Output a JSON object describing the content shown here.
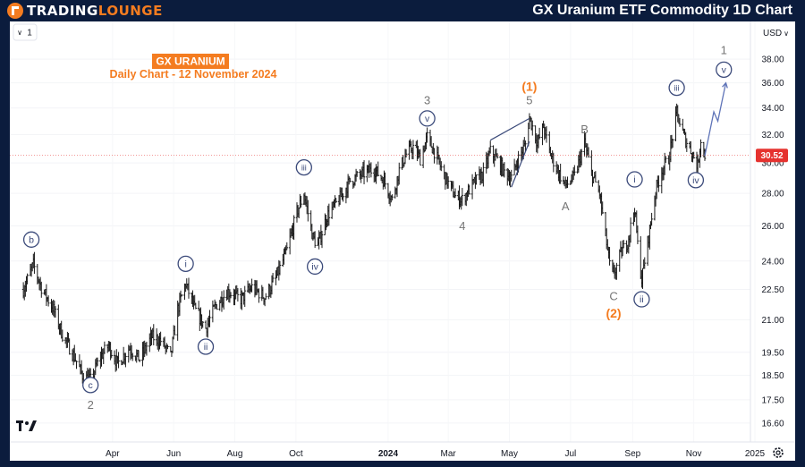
{
  "header": {
    "logo_word1": "TRADING",
    "logo_word2": "LOUNGE",
    "title": "GX Uranium ETF Commodity 1D Chart"
  },
  "chart_header": {
    "interval_button": "1",
    "currency": "USD",
    "badge_text": "GX URANIUM",
    "subtitle": "Daily Chart - 12 November 2024",
    "price_tag": "30.52",
    "tv_logo_icon": "tradingview-logo-icon",
    "settings_icon": "gear-icon"
  },
  "colors": {
    "accent": "#f47c20",
    "wave": "#3b4a7a",
    "grey_label": "#757575",
    "price_tag": "#e5322f",
    "candle": "#1a1a1a"
  },
  "chart_data": {
    "type": "ohlc",
    "y_scale": "log",
    "ylim": [
      15.9,
      41.4
    ],
    "y_ticks": [
      "38.00",
      "36.00",
      "34.00",
      "32.00",
      "30.00",
      "28.00",
      "26.00",
      "24.00",
      "22.50",
      "21.00",
      "19.50",
      "18.50",
      "17.50",
      "16.60"
    ],
    "x_ticks": [
      "Apr",
      "Jun",
      "Aug",
      "Oct",
      "2024",
      "Mar",
      "May",
      "Jul",
      "Sep",
      "Nov",
      "2025"
    ],
    "last_price": 30.52,
    "price_path": [
      [
        "2023-01-02",
        22.5
      ],
      [
        "2023-01-12",
        23.8
      ],
      [
        "2023-01-20",
        22.6
      ],
      [
        "2023-02-01",
        21.5
      ],
      [
        "2023-02-10",
        20.3
      ],
      [
        "2023-02-22",
        19.3
      ],
      [
        "2023-03-02",
        18.5
      ],
      [
        "2023-03-10",
        18.3
      ],
      [
        "2023-03-20",
        19.3
      ],
      [
        "2023-03-28",
        19.8
      ],
      [
        "2023-04-06",
        19.0
      ],
      [
        "2023-04-18",
        19.7
      ],
      [
        "2023-04-28",
        19.2
      ],
      [
        "2023-05-10",
        20.2
      ],
      [
        "2023-05-20",
        20.0
      ],
      [
        "2023-05-29",
        19.3
      ],
      [
        "2023-06-05",
        21.5
      ],
      [
        "2023-06-13",
        22.8
      ],
      [
        "2023-06-22",
        21.5
      ],
      [
        "2023-07-03",
        20.6
      ],
      [
        "2023-07-13",
        21.7
      ],
      [
        "2023-07-25",
        22.4
      ],
      [
        "2023-08-07",
        22.0
      ],
      [
        "2023-08-18",
        22.6
      ],
      [
        "2023-08-31",
        22.1
      ],
      [
        "2023-09-12",
        23.2
      ],
      [
        "2023-09-22",
        24.6
      ],
      [
        "2023-10-02",
        26.8
      ],
      [
        "2023-10-09",
        28.0
      ],
      [
        "2023-10-18",
        25.3
      ],
      [
        "2023-10-23",
        24.9
      ],
      [
        "2023-11-01",
        26.6
      ],
      [
        "2023-11-13",
        27.6
      ],
      [
        "2023-11-24",
        28.8
      ],
      [
        "2023-12-05",
        29.2
      ],
      [
        "2023-12-18",
        29.6
      ],
      [
        "2023-12-28",
        28.8
      ],
      [
        "2024-01-05",
        27.6
      ],
      [
        "2024-01-12",
        29.5
      ],
      [
        "2024-01-19",
        30.6
      ],
      [
        "2024-01-26",
        31.1
      ],
      [
        "2024-02-02",
        30.3
      ],
      [
        "2024-02-09",
        31.8
      ],
      [
        "2024-02-16",
        30.8
      ],
      [
        "2024-02-27",
        29.0
      ],
      [
        "2024-03-08",
        27.8
      ],
      [
        "2024-03-15",
        27.6
      ],
      [
        "2024-03-26",
        28.6
      ],
      [
        "2024-04-05",
        29.3
      ],
      [
        "2024-04-12",
        30.8
      ],
      [
        "2024-04-18",
        30.3
      ],
      [
        "2024-04-26",
        29.4
      ],
      [
        "2024-05-03",
        29.0
      ],
      [
        "2024-05-10",
        30.3
      ],
      [
        "2024-05-17",
        31.3
      ],
      [
        "2024-05-21",
        33.3
      ],
      [
        "2024-05-29",
        31.4
      ],
      [
        "2024-06-04",
        32.6
      ],
      [
        "2024-06-10",
        30.8
      ],
      [
        "2024-06-18",
        29.5
      ],
      [
        "2024-06-26",
        28.5
      ],
      [
        "2024-07-05",
        29.1
      ],
      [
        "2024-07-15",
        31.4
      ],
      [
        "2024-07-22",
        29.3
      ],
      [
        "2024-07-30",
        28.0
      ],
      [
        "2024-08-06",
        25.0
      ],
      [
        "2024-08-09",
        23.8
      ],
      [
        "2024-08-13",
        23.2
      ],
      [
        "2024-08-20",
        24.4
      ],
      [
        "2024-08-27",
        25.1
      ],
      [
        "2024-09-03",
        27.1
      ],
      [
        "2024-09-06",
        24.9
      ],
      [
        "2024-09-10",
        23.0
      ],
      [
        "2024-09-17",
        25.4
      ],
      [
        "2024-09-24",
        28.2
      ],
      [
        "2024-09-30",
        29.5
      ],
      [
        "2024-10-07",
        30.3
      ],
      [
        "2024-10-15",
        33.6
      ],
      [
        "2024-10-22",
        31.9
      ],
      [
        "2024-10-29",
        30.9
      ],
      [
        "2024-11-05",
        29.8
      ],
      [
        "2024-11-08",
        31.7
      ],
      [
        "2024-11-12",
        30.5
      ]
    ],
    "wave_labels": [
      {
        "text": "b",
        "date": "2023-01-10",
        "price": 25.2,
        "style": "circle",
        "color": "wave"
      },
      {
        "text": "c",
        "date": "2023-03-10",
        "price": 18.1,
        "style": "circle",
        "color": "wave"
      },
      {
        "text": "2",
        "date": "2023-03-10",
        "price": 17.3,
        "style": "plain",
        "color": "grey_label"
      },
      {
        "text": "i",
        "date": "2023-06-13",
        "price": 23.85,
        "style": "circle",
        "color": "wave"
      },
      {
        "text": "ii",
        "date": "2023-07-03",
        "price": 19.75,
        "style": "circle",
        "color": "wave"
      },
      {
        "text": "iii",
        "date": "2023-10-09",
        "price": 29.7,
        "style": "circle",
        "color": "wave"
      },
      {
        "text": "iv",
        "date": "2023-10-20",
        "price": 23.7,
        "style": "circle",
        "color": "wave"
      },
      {
        "text": "3",
        "date": "2024-02-09",
        "price": 34.6,
        "style": "plain",
        "color": "grey_label"
      },
      {
        "text": "v",
        "date": "2024-02-09",
        "price": 33.2,
        "style": "circle",
        "color": "wave"
      },
      {
        "text": "4",
        "date": "2024-03-15",
        "price": 26.0,
        "style": "plain",
        "color": "grey_label"
      },
      {
        "text": "(1)",
        "date": "2024-05-21",
        "price": 35.7,
        "style": "plain",
        "color": "accent"
      },
      {
        "text": "5",
        "date": "2024-05-21",
        "price": 34.6,
        "style": "plain",
        "color": "grey_label"
      },
      {
        "text": "B",
        "date": "2024-07-15",
        "price": 32.4,
        "style": "plain",
        "color": "grey_label"
      },
      {
        "text": "A",
        "date": "2024-06-26",
        "price": 27.2,
        "style": "plain",
        "color": "grey_label"
      },
      {
        "text": "C",
        "date": "2024-08-13",
        "price": 22.15,
        "style": "plain",
        "color": "grey_label"
      },
      {
        "text": "(2)",
        "date": "2024-08-13",
        "price": 21.3,
        "style": "plain",
        "color": "accent"
      },
      {
        "text": "i",
        "date": "2024-09-03",
        "price": 28.9,
        "style": "circle",
        "color": "wave"
      },
      {
        "text": "ii",
        "date": "2024-09-10",
        "price": 22.0,
        "style": "circle",
        "color": "wave"
      },
      {
        "text": "iii",
        "date": "2024-10-15",
        "price": 35.6,
        "style": "circle",
        "color": "wave"
      },
      {
        "text": "iv",
        "date": "2024-11-03",
        "price": 28.85,
        "style": "circle",
        "color": "wave"
      },
      {
        "text": "1",
        "date": "2024-12-01",
        "price": 38.8,
        "style": "plain",
        "color": "grey_label"
      },
      {
        "text": "v",
        "date": "2024-12-01",
        "price": 37.1,
        "style": "circle",
        "color": "wave"
      }
    ],
    "wedge_lines": [
      [
        [
          "2024-04-12",
          31.6
        ],
        [
          "2024-05-21",
          33.2
        ]
      ],
      [
        [
          "2024-05-03",
          28.4
        ],
        [
          "2024-05-21",
          31.5
        ]
      ]
    ],
    "projection_path": [
      [
        "2024-11-12",
        30.5
      ],
      [
        "2024-11-21",
        33.7
      ],
      [
        "2024-11-25",
        33.0
      ],
      [
        "2024-12-03",
        36.0
      ]
    ]
  }
}
